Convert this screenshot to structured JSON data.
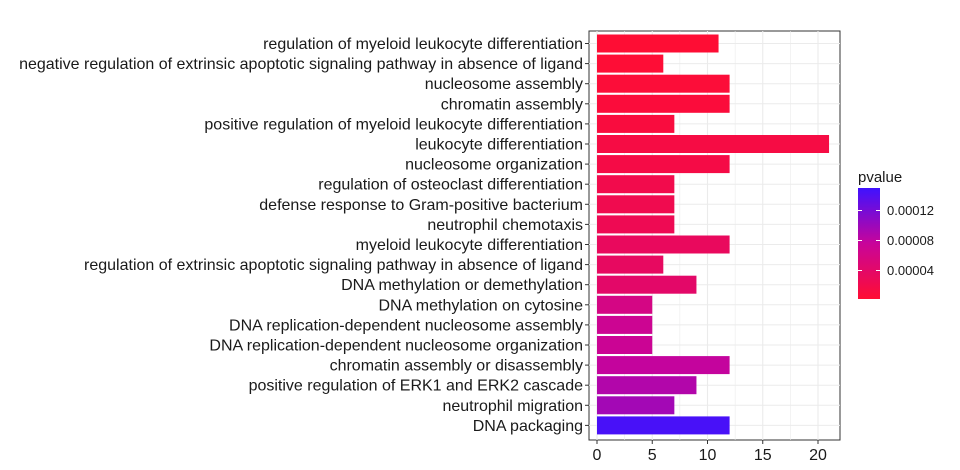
{
  "chart_data": {
    "type": "bar",
    "orientation": "horizontal",
    "title": "",
    "xlabel": "",
    "ylabel": "",
    "categories": [
      "regulation of myeloid leukocyte differentiation",
      "negative regulation of extrinsic apoptotic signaling pathway in absence of ligand",
      "nucleosome assembly",
      "chromatin assembly",
      "positive regulation of myeloid leukocyte differentiation",
      "leukocyte differentiation",
      "nucleosome organization",
      "regulation of osteoclast differentiation",
      "defense response to Gram-positive bacterium",
      "neutrophil chemotaxis",
      "myeloid leukocyte differentiation",
      "regulation of extrinsic apoptotic signaling pathway in absence of ligand",
      "DNA methylation or demethylation",
      "DNA methylation on cytosine",
      "DNA replication-dependent nucleosome assembly",
      "DNA replication-dependent nucleosome organization",
      "chromatin assembly or disassembly",
      "positive regulation of ERK1 and ERK2 cascade",
      "neutrophil migration",
      "DNA packaging"
    ],
    "values": [
      11,
      6,
      12,
      12,
      7,
      21,
      12,
      7,
      7,
      7,
      12,
      6,
      9,
      5,
      5,
      5,
      12,
      9,
      7,
      12
    ],
    "pvalues": [
      3e-06,
      4e-06,
      6e-06,
      8e-06,
      1e-05,
      1.4e-05,
      1.6e-05,
      2e-05,
      2.2e-05,
      2.5e-05,
      3.2e-05,
      3.4e-05,
      4e-05,
      6e-05,
      7e-05,
      7.2e-05,
      7.8e-05,
      8.8e-05,
      9.6e-05,
      0.000145
    ],
    "xlim": [
      0,
      22
    ],
    "xticks": [
      "0",
      "5",
      "10",
      "15",
      "20"
    ],
    "xtick_values": [
      0,
      5,
      10,
      15,
      20
    ],
    "grid": true,
    "legend": {
      "title": "pvalue",
      "placement": "right",
      "ticks": [
        "0.00012",
        "0.00008",
        "0.00004"
      ],
      "tick_values": [
        0.00012,
        8e-05,
        4e-05
      ],
      "range": [
        2e-06,
        0.00015
      ],
      "color_low": "#ff0d33",
      "color_high": "#3f12ff"
    }
  }
}
